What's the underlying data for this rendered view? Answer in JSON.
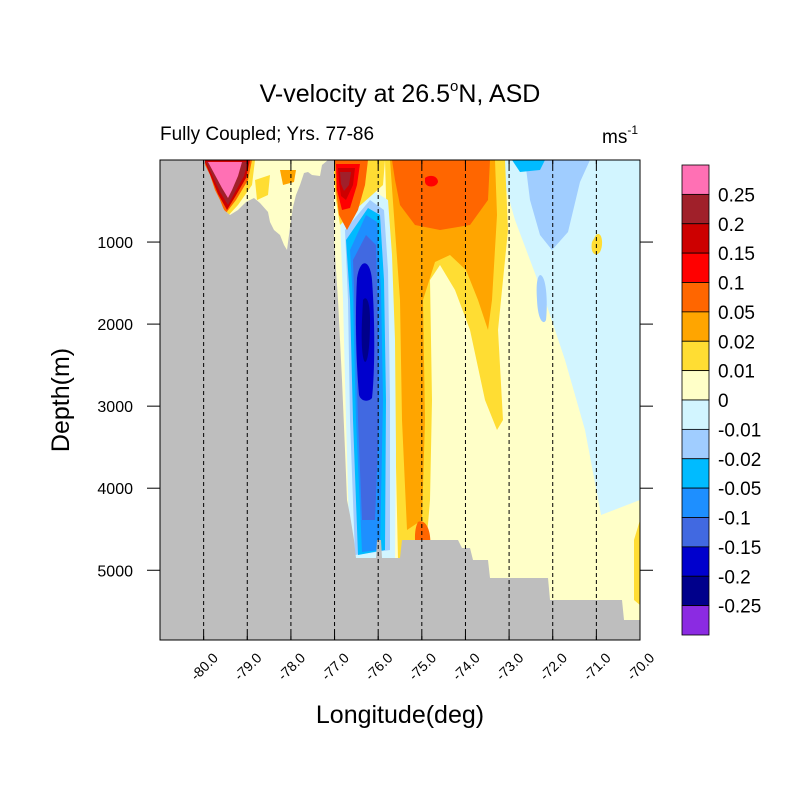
{
  "chart_data": {
    "type": "contour",
    "title": "V-velocity at 26.5",
    "title_degree": "o",
    "title_rest": "N, ASD",
    "subtitle_left": "Fully Coupled; Yrs. 77-86",
    "units_base": "ms",
    "units_exp": "-1",
    "xlabel": "Longitude(deg)",
    "ylabel": "Depth(m)",
    "xlim": [
      -81.0,
      -70.0
    ],
    "ylim": [
      5850,
      0
    ],
    "x_ticks": [
      -80.0,
      -79.0,
      -78.0,
      -77.0,
      -76.0,
      -75.0,
      -74.0,
      -73.0,
      -72.0,
      -71.0,
      -70.0
    ],
    "x_tick_labels": [
      "-80.0",
      "-79.0",
      "-78.0",
      "-77.0",
      "-76.0",
      "-75.0",
      "-74.0",
      "-73.0",
      "-72.0",
      "-71.0",
      "-70.0"
    ],
    "y_ticks": [
      1000,
      2000,
      3000,
      4000,
      5000
    ],
    "y_tick_labels": [
      "1000",
      "2000",
      "3000",
      "4000",
      "5000"
    ],
    "grid": "vertical dashed lines at x ticks",
    "land_color": "#bebebe",
    "colorbar": {
      "placement": "right",
      "colors": [
        "#ff70b4",
        "#a0202a",
        "#cd0000",
        "#ff0000",
        "#ff6600",
        "#ffa500",
        "#ffdd33",
        "#ffffc8",
        "#d2f5ff",
        "#a0cdff",
        "#00bbff",
        "#1e8fff",
        "#4169e1",
        "#0000cd",
        "#00008b",
        "#8b2be2"
      ],
      "labels": [
        "0.25",
        "0.2",
        "0.15",
        "0.1",
        "0.05",
        "0.02",
        "0.01",
        "0",
        "-0.01",
        "-0.02",
        "-0.05",
        "-0.1",
        "-0.15",
        "-0.2",
        "-0.25"
      ]
    }
  }
}
